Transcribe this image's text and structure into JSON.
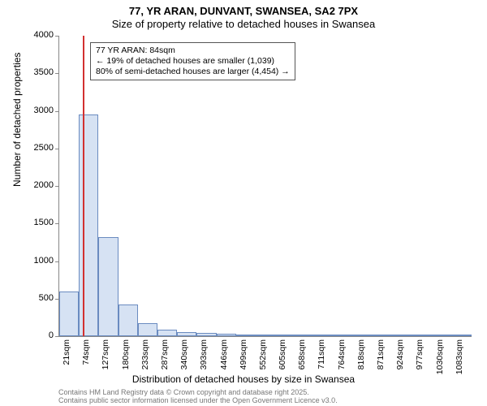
{
  "titles": {
    "line1": "77, YR ARAN, DUNVANT, SWANSEA, SA2 7PX",
    "line2": "Size of property relative to detached houses in Swansea"
  },
  "chart": {
    "type": "histogram",
    "ylabel": "Number of detached properties",
    "xlabel": "Distribution of detached houses by size in Swansea",
    "ylim": [
      0,
      4000
    ],
    "ytick_step": 500,
    "yticks": [
      0,
      500,
      1000,
      1500,
      2000,
      2500,
      3000,
      3500,
      4000
    ],
    "xticks": [
      "21sqm",
      "74sqm",
      "127sqm",
      "180sqm",
      "233sqm",
      "287sqm",
      "340sqm",
      "393sqm",
      "446sqm",
      "499sqm",
      "552sqm",
      "605sqm",
      "658sqm",
      "711sqm",
      "764sqm",
      "818sqm",
      "871sqm",
      "924sqm",
      "977sqm",
      "1030sqm",
      "1083sqm"
    ],
    "bar_values": [
      590,
      2950,
      1320,
      420,
      170,
      90,
      55,
      40,
      30,
      25,
      18,
      12,
      10,
      8,
      6,
      5,
      4,
      3,
      2,
      2,
      1
    ],
    "bar_fill": "#d6e2f3",
    "bar_border": "#6a8bc0",
    "background_color": "#ffffff",
    "axis_color": "#888888",
    "marker_line_color": "#d23030",
    "marker_position_sqm": 84,
    "x_start": 21,
    "x_step": 53,
    "x_count": 21
  },
  "annotation": {
    "line1": "77 YR ARAN: 84sqm",
    "line2": "← 19% of detached houses are smaller (1,039)",
    "line3": "80% of semi-detached houses are larger (4,454) →"
  },
  "attribution": {
    "line1": "Contains HM Land Registry data © Crown copyright and database right 2025.",
    "line2": "Contains public sector information licensed under the Open Government Licence v3.0."
  },
  "fonts": {
    "title_size": 13,
    "label_size": 12,
    "tick_size": 11,
    "annot_size": 10.5,
    "attribution_size": 9
  }
}
